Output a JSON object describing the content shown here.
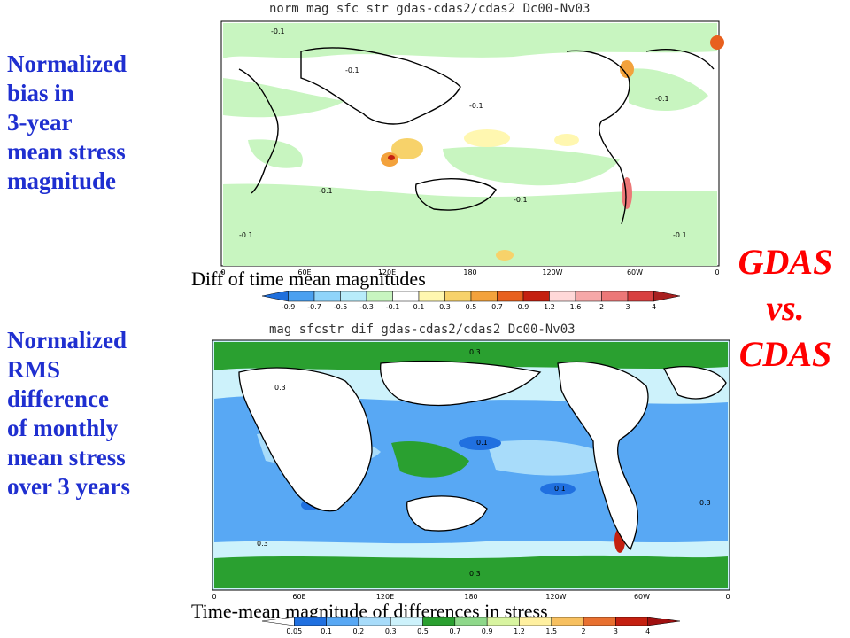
{
  "top_panel": {
    "description": "Normalized\nbias in\n3-year\nmean stress\nmagnitude",
    "map_title": "norm mag sfc str gdas-cdas2/cdas2 Dc00-Nv03",
    "colorbar_caption": "Diff of time mean magnitudes",
    "colorbar_ticks": [
      "-0.9",
      "-0.7",
      "-0.5",
      "-0.3",
      "-0.1",
      "0.1",
      "0.3",
      "0.5",
      "0.7",
      "0.9",
      "1.2",
      "1.6",
      "2",
      "3",
      "4"
    ],
    "colorbar_colors": [
      "#1f6fdc",
      "#4aa0f0",
      "#8fd4fa",
      "#b8ecfa",
      "#c8f5c0",
      "#ffffff",
      "#fff7b0",
      "#f7d26a",
      "#f3a23c",
      "#e8601e",
      "#c42010",
      "#ffd8d8",
      "#f6a8a8",
      "#ec7878",
      "#d84040",
      "#a82020"
    ],
    "contour_label": "-0.1"
  },
  "bottom_panel": {
    "description": "Normalized\nRMS\ndifference\nof monthly\nmean stress\nover 3 years",
    "map_title": "mag sfcstr dif gdas-cdas2/cdas2 Dc00-Nv03",
    "colorbar_caption": "Time-mean magnitude of differences in stress",
    "colorbar_ticks": [
      "0.05",
      "0.1",
      "0.2",
      "0.3",
      "0.5",
      "0.7",
      "0.9",
      "1.2",
      "1.5",
      "2",
      "3",
      "4"
    ],
    "colorbar_colors": [
      "#ffffff",
      "#2070e0",
      "#58a8f4",
      "#a8dcfa",
      "#cdf2fb",
      "#2aa030",
      "#8ed88a",
      "#d8f4a0",
      "#fff0a0",
      "#f7c060",
      "#e87030",
      "#c42010",
      "#a01010"
    ],
    "contour_labels": [
      "0.3",
      "0.1"
    ]
  },
  "x_axis_labels": [
    "0",
    "60E",
    "120E",
    "180",
    "120W",
    "60W",
    "0"
  ],
  "comparison_label": "GDAS\nvs.\nCDAS"
}
